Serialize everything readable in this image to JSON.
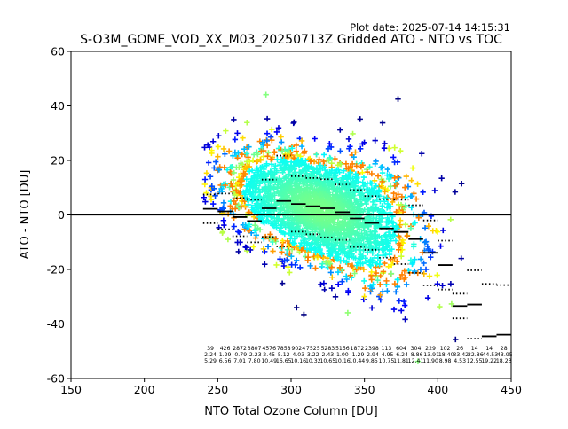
{
  "figure": {
    "plot_date": "Plot date: 2025-07-14 14:15:31",
    "title": "S-O3M_GOME_VOD_XX_M03_20250713Z Gridded ATO - NTO vs TOC"
  },
  "chart_data": {
    "type": "scatter",
    "title": "S-O3M_GOME_VOD_XX_M03_20250713Z Gridded ATO - NTO vs TOC",
    "xlabel": "NTO Total Ozone Column [DU]",
    "ylabel": "ATO - NTO [DU]",
    "xlim": [
      150,
      450
    ],
    "ylim": [
      -60,
      60
    ],
    "xticks": [
      150,
      200,
      250,
      300,
      350,
      400,
      450
    ],
    "yticks": [
      -60,
      -40,
      -20,
      0,
      20,
      40,
      60
    ],
    "grid": false,
    "zero_line": 0,
    "marker": "+",
    "colormap": "jet (point density)",
    "bins": [
      {
        "x": 245,
        "count": "39",
        "mean": "2.24",
        "std": "5.29"
      },
      {
        "x": 255,
        "count": "426",
        "mean": "1.29",
        "std": "6.56"
      },
      {
        "x": 265,
        "count": "2872",
        "mean": "-0.79",
        "std": "7.01"
      },
      {
        "x": 275,
        "count": "3807",
        "mean": "-2.23",
        "std": "7.80"
      },
      {
        "x": 285,
        "count": "4576",
        "mean": "2.45",
        "std": "10.49"
      },
      {
        "x": 295,
        "count": "7858",
        "mean": "5.12",
        "std": "16.65"
      },
      {
        "x": 305,
        "count": "9024",
        "mean": "4.03",
        "std": "10.16"
      },
      {
        "x": 315,
        "count": "7525",
        "mean": "3.22",
        "std": "10.32"
      },
      {
        "x": 325,
        "count": "5283",
        "mean": "2.43",
        "std": "10.65"
      },
      {
        "x": 335,
        "count": "5156",
        "mean": "1.00",
        "std": "10.16"
      },
      {
        "x": 345,
        "count": "1872",
        "mean": "-1.29",
        "std": "10.44"
      },
      {
        "x": 355,
        "count": "2398",
        "mean": "-2.94",
        "std": "9.85"
      },
      {
        "x": 365,
        "count": "113",
        "mean": "-4.95",
        "std": "10.75"
      },
      {
        "x": 375,
        "count": "604",
        "mean": "-6.24",
        "std": "11.81"
      },
      {
        "x": 385,
        "count": "304",
        "mean": "-8.86",
        "std": "12.41"
      },
      {
        "x": 395,
        "count": "229",
        "mean": "-13.91",
        "std": "11.90"
      },
      {
        "x": 405,
        "count": "102",
        "mean": "-18.40",
        "std": "8.98"
      },
      {
        "x": 415,
        "count": "26",
        "mean": "-33.42",
        "std": "4.53"
      },
      {
        "x": 425,
        "count": "14",
        "mean": "-32.86",
        "std": "12.55"
      },
      {
        "x": 435,
        "count": "14",
        "mean": "-44.53",
        "std": "19.22"
      },
      {
        "x": 445,
        "count": "28",
        "mean": "-43.95",
        "std": "18.23"
      }
    ],
    "scatter_cloud": {
      "x_center": 320,
      "x_sd": 32,
      "x_min": 240,
      "x_max": 450,
      "slope": -0.16,
      "y_at_center": 2,
      "y_sd": 10,
      "n_points": 2600
    }
  }
}
